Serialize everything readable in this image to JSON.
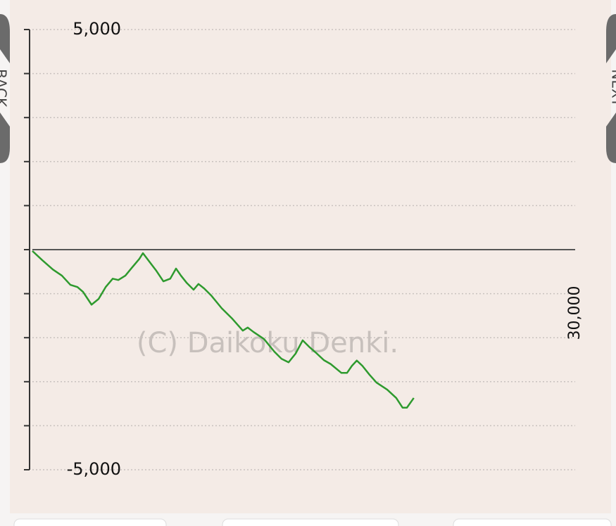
{
  "chart_data": {
    "type": "line",
    "watermark": "(C) Daikoku Denki.",
    "xlim": [
      0,
      30000
    ],
    "xticks": [
      {
        "value": 30000,
        "label": "30,000"
      }
    ],
    "ylim": [
      -5000,
      5000
    ],
    "yticks": [
      {
        "value": 5000,
        "label": "5,000"
      },
      {
        "value": 4000,
        "label": null
      },
      {
        "value": 3000,
        "label": null
      },
      {
        "value": 2000,
        "label": null
      },
      {
        "value": 1000,
        "label": null
      },
      {
        "value": 0,
        "label": null
      },
      {
        "value": -1000,
        "label": null
      },
      {
        "value": -2000,
        "label": null
      },
      {
        "value": -3000,
        "label": null
      },
      {
        "value": -4000,
        "label": null
      },
      {
        "value": -5000,
        "label": "-5,000"
      }
    ],
    "grid": true,
    "x": [
      0,
      550,
      1130,
      1630,
      2100,
      2490,
      2800,
      3270,
      3660,
      4050,
      4440,
      4750,
      5140,
      5520,
      5910,
      6110,
      6460,
      6850,
      7240,
      7620,
      7940,
      8210,
      8520,
      8910,
      9180,
      9490,
      9880,
      10460,
      11050,
      11630,
      11900,
      12220,
      12800,
      13380,
      13770,
      14160,
      14550,
      14940,
      15330,
      15720,
      16110,
      16490,
      17080,
      17390,
      17660,
      17930,
      18240,
      18630,
      19020,
      19610,
      20110,
      20460,
      20700,
      21080
    ],
    "series": [
      {
        "name": null,
        "color": "#2e9a2e",
        "values": [
          -30,
          -240,
          -450,
          -590,
          -800,
          -850,
          -960,
          -1250,
          -1120,
          -850,
          -660,
          -690,
          -590,
          -400,
          -210,
          -80,
          -270,
          -480,
          -720,
          -660,
          -430,
          -590,
          -750,
          -910,
          -780,
          -880,
          -1040,
          -1330,
          -1570,
          -1840,
          -1770,
          -1870,
          -2030,
          -2320,
          -2480,
          -2560,
          -2360,
          -2060,
          -2220,
          -2360,
          -2510,
          -2600,
          -2800,
          -2800,
          -2640,
          -2520,
          -2640,
          -2840,
          -3020,
          -3180,
          -3370,
          -3590,
          -3590,
          -3370
        ]
      }
    ]
  },
  "navigation": {
    "back": "BACK",
    "next": "NEXT"
  }
}
